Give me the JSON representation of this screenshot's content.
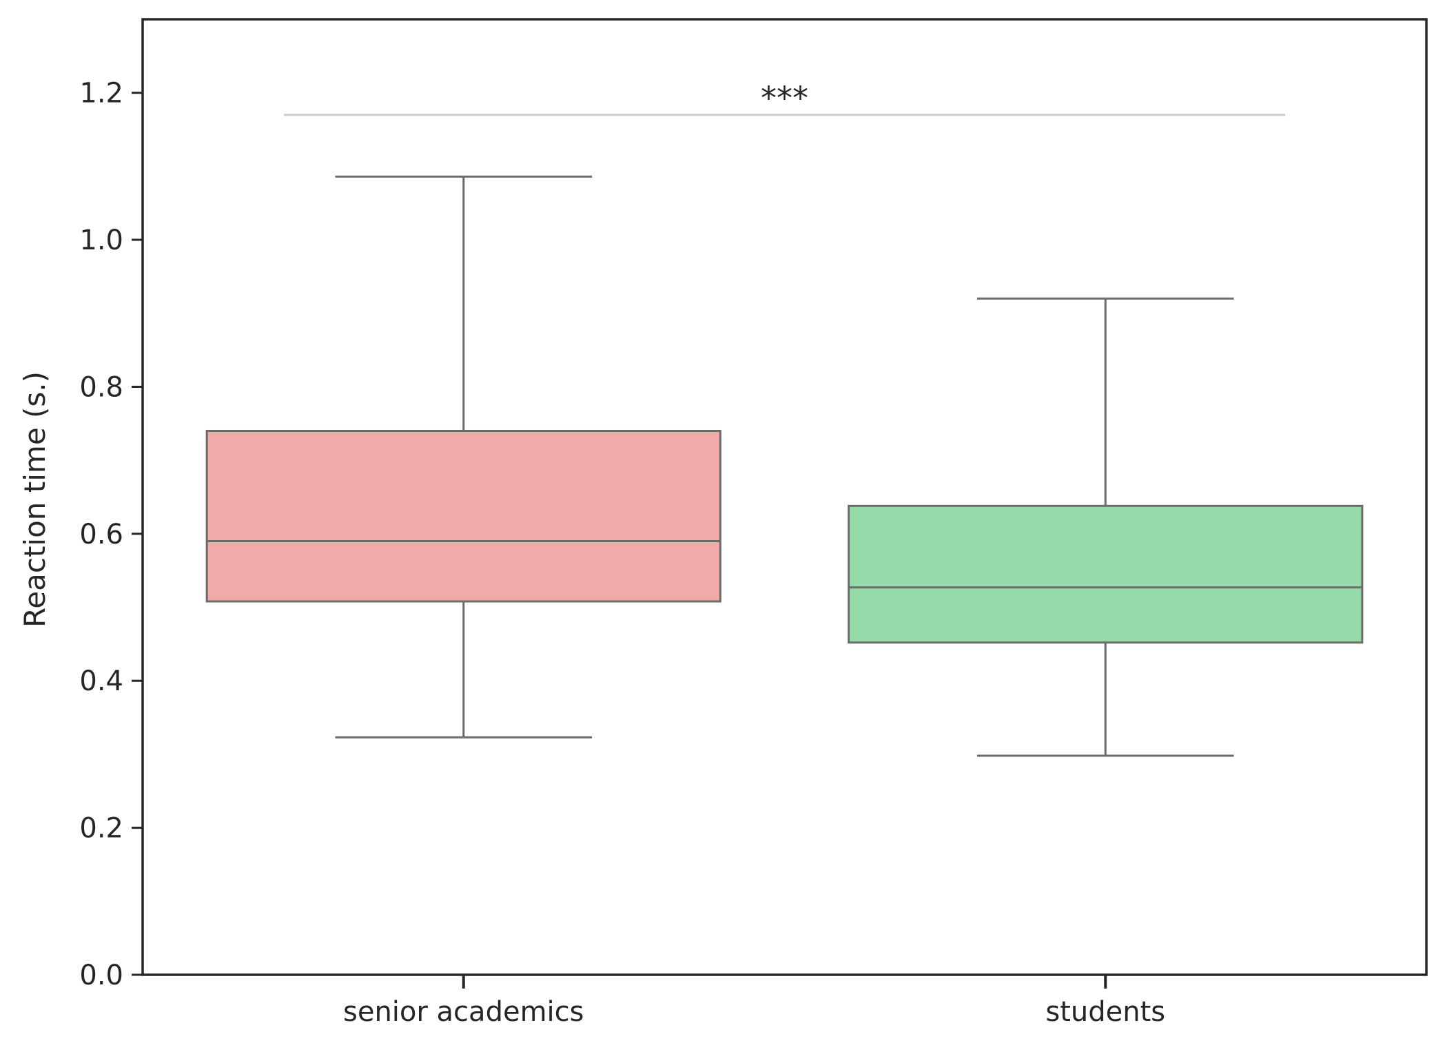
{
  "chart_data": {
    "type": "box",
    "title": "",
    "xlabel": "",
    "ylabel": "Reaction time (s.)",
    "ylim": [
      0.0,
      1.3
    ],
    "yticks": [
      0.0,
      0.2,
      0.4,
      0.6,
      0.8,
      1.0,
      1.2
    ],
    "ytick_labels": [
      "0.0",
      "0.2",
      "0.4",
      "0.6",
      "0.8",
      "1.0",
      "1.2"
    ],
    "grid": false,
    "categories": [
      "senior academics",
      "students"
    ],
    "boxes": [
      {
        "category": "senior academics",
        "whisker_low": 0.323,
        "q1": 0.508,
        "median": 0.59,
        "q3": 0.74,
        "whisker_high": 1.086,
        "color": "#F2AAA9"
      },
      {
        "category": "students",
        "whisker_low": 0.298,
        "q1": 0.452,
        "median": 0.527,
        "q3": 0.638,
        "whisker_high": 0.92,
        "color": "#98DBAA"
      }
    ],
    "significance": {
      "text": "***",
      "between": [
        "senior academics",
        "students"
      ],
      "y": 1.17,
      "line_color": "#CCCCCC"
    },
    "colors": {
      "box_edge": "#6B6B6B",
      "axis": "#262626",
      "text": "#262626"
    }
  }
}
